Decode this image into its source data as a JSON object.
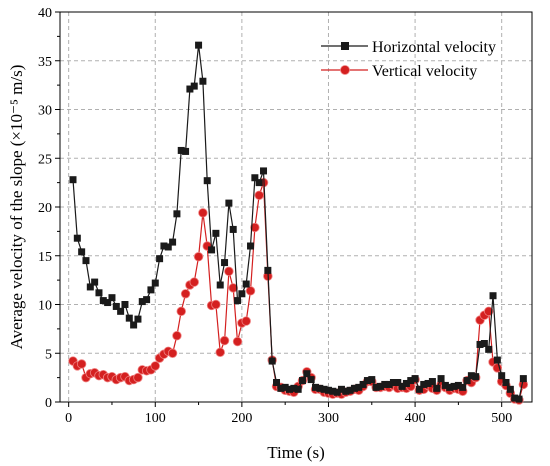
{
  "chart_data": {
    "type": "line",
    "title": "",
    "xlabel": "Time (s)",
    "ylabel": "Average velocity of the slope (×10⁻⁵ m/s)",
    "xlim": [
      -10,
      535
    ],
    "ylim": [
      0,
      40
    ],
    "xticks": [
      0,
      100,
      200,
      300,
      400,
      500
    ],
    "yticks": [
      0,
      5,
      10,
      15,
      20,
      25,
      30,
      35,
      40
    ],
    "grid": true,
    "legend_position": "top-right",
    "series": [
      {
        "name": "Horizontal velocity",
        "color": "#1a1a1a",
        "marker": "square",
        "x": [
          5,
          10,
          15,
          20,
          25,
          30,
          35,
          40,
          45,
          50,
          55,
          60,
          65,
          70,
          75,
          80,
          85,
          90,
          95,
          100,
          105,
          110,
          115,
          120,
          125,
          130,
          135,
          140,
          145,
          150,
          155,
          160,
          165,
          170,
          175,
          180,
          185,
          190,
          195,
          200,
          205,
          210,
          215,
          220,
          225,
          230,
          235,
          240,
          245,
          250,
          255,
          260,
          265,
          270,
          275,
          280,
          285,
          290,
          295,
          300,
          305,
          310,
          315,
          320,
          325,
          330,
          335,
          340,
          345,
          350,
          355,
          360,
          365,
          370,
          375,
          380,
          385,
          390,
          395,
          400,
          405,
          410,
          415,
          420,
          425,
          430,
          435,
          440,
          445,
          450,
          455,
          460,
          465,
          470,
          475,
          480,
          485,
          490,
          495,
          500,
          505,
          510,
          515,
          520,
          525
        ],
        "y": [
          22.8,
          16.8,
          15.4,
          14.5,
          11.8,
          12.3,
          11.2,
          10.4,
          10.2,
          10.7,
          9.8,
          9.3,
          10.0,
          8.6,
          7.9,
          8.5,
          10.3,
          10.5,
          11.5,
          12.2,
          14.7,
          16.0,
          15.9,
          16.4,
          19.3,
          25.8,
          25.7,
          32.1,
          32.4,
          36.6,
          32.9,
          22.7,
          15.6,
          17.3,
          12.0,
          14.3,
          20.4,
          17.7,
          10.4,
          11.1,
          12.1,
          16.0,
          23.0,
          22.5,
          23.7,
          13.5,
          4.2,
          2.0,
          1.4,
          1.5,
          1.3,
          1.4,
          1.3,
          2.2,
          2.9,
          2.3,
          1.5,
          1.4,
          1.3,
          1.2,
          1.1,
          1.0,
          1.3,
          1.1,
          1.2,
          1.4,
          1.5,
          1.8,
          2.2,
          2.3,
          1.5,
          1.6,
          1.8,
          1.8,
          2.0,
          2.0,
          1.6,
          1.9,
          2.2,
          2.4,
          1.3,
          1.8,
          1.9,
          2.1,
          1.4,
          2.4,
          1.7,
          1.5,
          1.6,
          1.7,
          1.5,
          2.2,
          2.7,
          2.6,
          5.9,
          6.0,
          5.4,
          10.9,
          4.3,
          2.7,
          2.0,
          1.3,
          0.4,
          0.3,
          2.4
        ]
      },
      {
        "name": "Vertical velocity",
        "color": "#d42020",
        "marker": "circle",
        "x": [
          5,
          10,
          15,
          20,
          25,
          30,
          35,
          40,
          45,
          50,
          55,
          60,
          65,
          70,
          75,
          80,
          85,
          90,
          95,
          100,
          105,
          110,
          115,
          120,
          125,
          130,
          135,
          140,
          145,
          150,
          155,
          160,
          165,
          170,
          175,
          180,
          185,
          190,
          195,
          200,
          205,
          210,
          215,
          220,
          225,
          230,
          235,
          240,
          245,
          250,
          255,
          260,
          265,
          270,
          275,
          280,
          285,
          290,
          295,
          300,
          305,
          310,
          315,
          320,
          325,
          330,
          335,
          340,
          345,
          350,
          355,
          360,
          365,
          370,
          375,
          380,
          385,
          390,
          395,
          400,
          405,
          410,
          415,
          420,
          425,
          430,
          435,
          440,
          445,
          450,
          455,
          460,
          465,
          470,
          475,
          480,
          485,
          490,
          495,
          500,
          505,
          510,
          515,
          520,
          525
        ],
        "y": [
          4.2,
          3.7,
          3.9,
          2.5,
          2.9,
          3.0,
          2.7,
          2.8,
          2.5,
          2.6,
          2.3,
          2.5,
          2.6,
          2.2,
          2.3,
          2.5,
          3.3,
          3.2,
          3.3,
          3.7,
          4.5,
          4.9,
          5.2,
          5.0,
          6.8,
          9.3,
          11.1,
          12.0,
          12.3,
          14.9,
          19.4,
          16.0,
          9.9,
          10.0,
          5.1,
          6.3,
          13.4,
          11.7,
          6.2,
          8.1,
          8.3,
          11.4,
          17.9,
          21.2,
          22.5,
          12.9,
          4.3,
          1.6,
          1.5,
          1.2,
          1.1,
          1.0,
          1.6,
          2.2,
          3.1,
          2.5,
          1.3,
          1.3,
          1.0,
          0.9,
          0.8,
          0.9,
          0.8,
          1.0,
          1.1,
          1.3,
          1.2,
          1.6,
          2.1,
          2.1,
          1.5,
          1.5,
          1.6,
          1.5,
          1.7,
          1.4,
          1.5,
          1.4,
          1.6,
          2.3,
          1.2,
          1.3,
          1.7,
          1.4,
          1.2,
          1.8,
          1.5,
          1.2,
          1.4,
          1.3,
          1.1,
          2.2,
          2.0,
          2.5,
          8.4,
          8.9,
          9.3,
          4.1,
          3.5,
          2.1,
          1.7,
          0.9,
          0.3,
          0.2,
          1.8
        ]
      }
    ]
  }
}
